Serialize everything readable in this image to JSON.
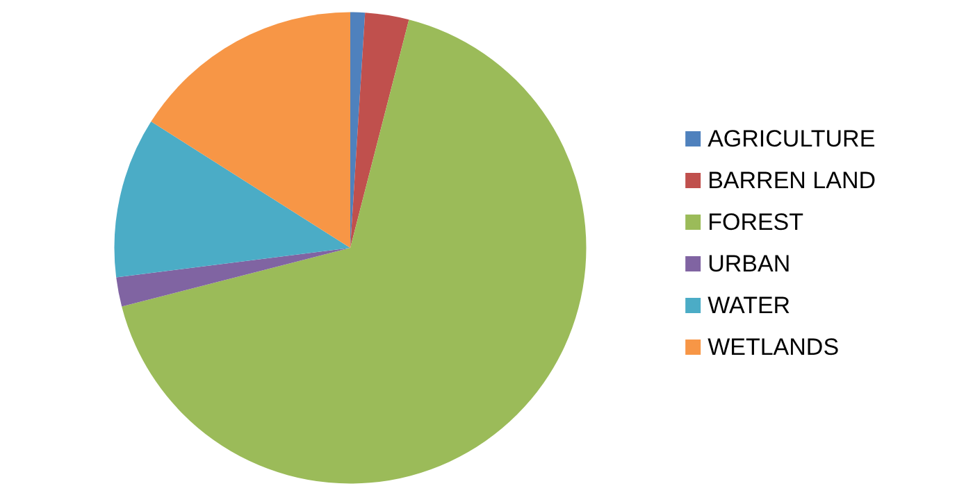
{
  "chart_data": {
    "type": "pie",
    "categories": [
      "AGRICULTURE",
      "BARREN LAND",
      "FOREST",
      "URBAN",
      "WATER",
      "WETLANDS"
    ],
    "values": [
      1,
      3,
      67,
      2,
      11,
      16
    ],
    "colors": [
      "#4f81bd",
      "#c0504d",
      "#9bbb59",
      "#8064a2",
      "#4bacc6",
      "#f79646"
    ],
    "legend": "right"
  }
}
